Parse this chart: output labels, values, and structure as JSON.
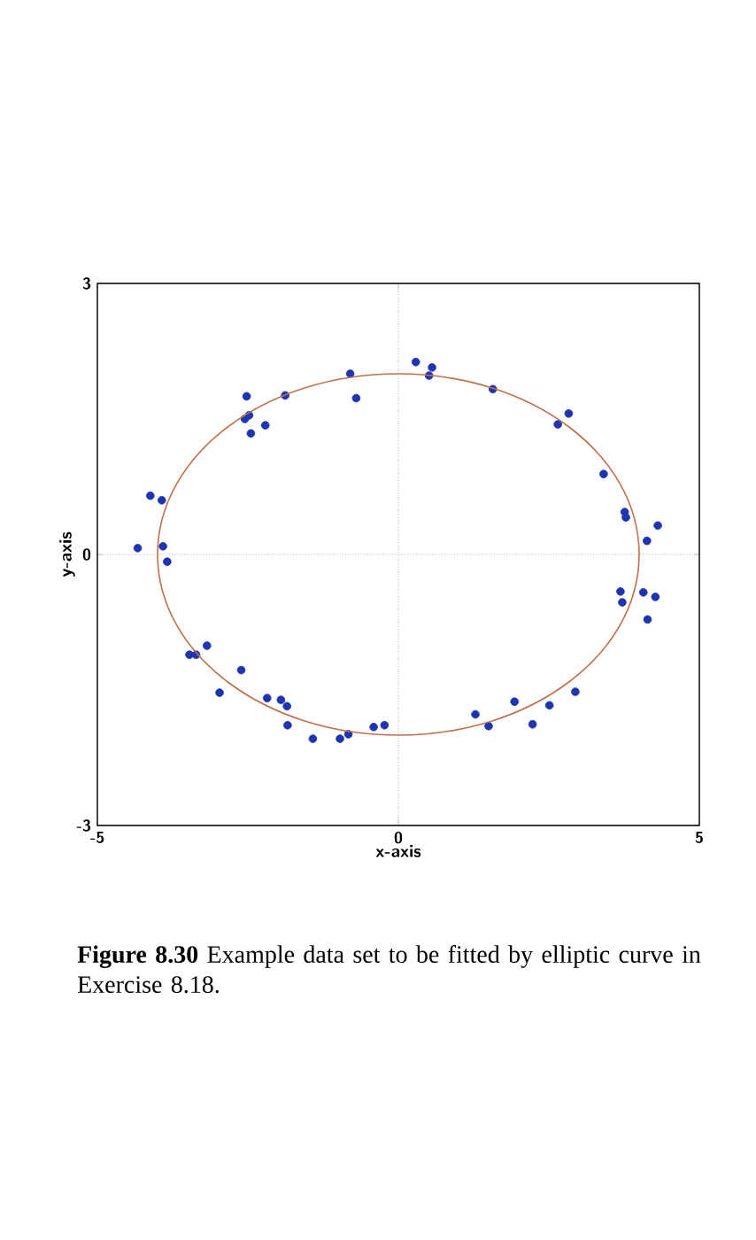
{
  "chart_data": {
    "type": "scatter",
    "xlabel": "x-axis",
    "ylabel": "y-axis",
    "xlim": [
      -5,
      5
    ],
    "ylim": [
      -3,
      3
    ],
    "xticks": [
      -5,
      0,
      5
    ],
    "yticks": [
      -3,
      0,
      3
    ],
    "grid": true,
    "marker": "circle",
    "annotations": [
      "**Figure 8.30** Example data set to be fitted by elliptic curve in Exercise 8.18."
    ],
    "series": [
      {
        "color": "#1f35b0",
        "x": [
          -4.33,
          -3.84,
          -3.91,
          -4.12,
          -3.93,
          -2.45,
          -2.55,
          -2.48,
          -2.52,
          -2.21,
          -1.88,
          -0.8,
          -0.7,
          0.29,
          0.51,
          0.56,
          1.57,
          2.65,
          2.83,
          3.41,
          3.78,
          3.76,
          4.13,
          4.31,
          3.72,
          3.69,
          4.07,
          4.14,
          4.27,
          1.28,
          1.5,
          1.93,
          2.23,
          2.51,
          2.94,
          -3.47,
          -3.36,
          -3.18,
          -2.97,
          -2.61,
          -2.18,
          -1.84,
          -1.85,
          -1.95,
          -1.42,
          -0.97,
          -0.83,
          -0.41,
          -0.23
        ],
        "values": [
          0.07,
          -0.08,
          0.09,
          0.65,
          0.6,
          1.34,
          1.5,
          1.54,
          1.75,
          1.43,
          1.76,
          2.0,
          1.73,
          2.13,
          1.98,
          2.07,
          1.83,
          1.44,
          1.56,
          0.89,
          0.41,
          0.47,
          0.15,
          0.32,
          -0.53,
          -0.41,
          -0.42,
          -0.72,
          -0.47,
          -1.77,
          -1.9,
          -1.63,
          -1.88,
          -1.67,
          -1.52,
          -1.11,
          -1.11,
          -1.01,
          -1.53,
          -1.28,
          -1.59,
          -1.89,
          -1.68,
          -1.61,
          -2.04,
          -2.04,
          -1.99,
          -1.91,
          -1.89
        ]
      }
    ]
  }
}
